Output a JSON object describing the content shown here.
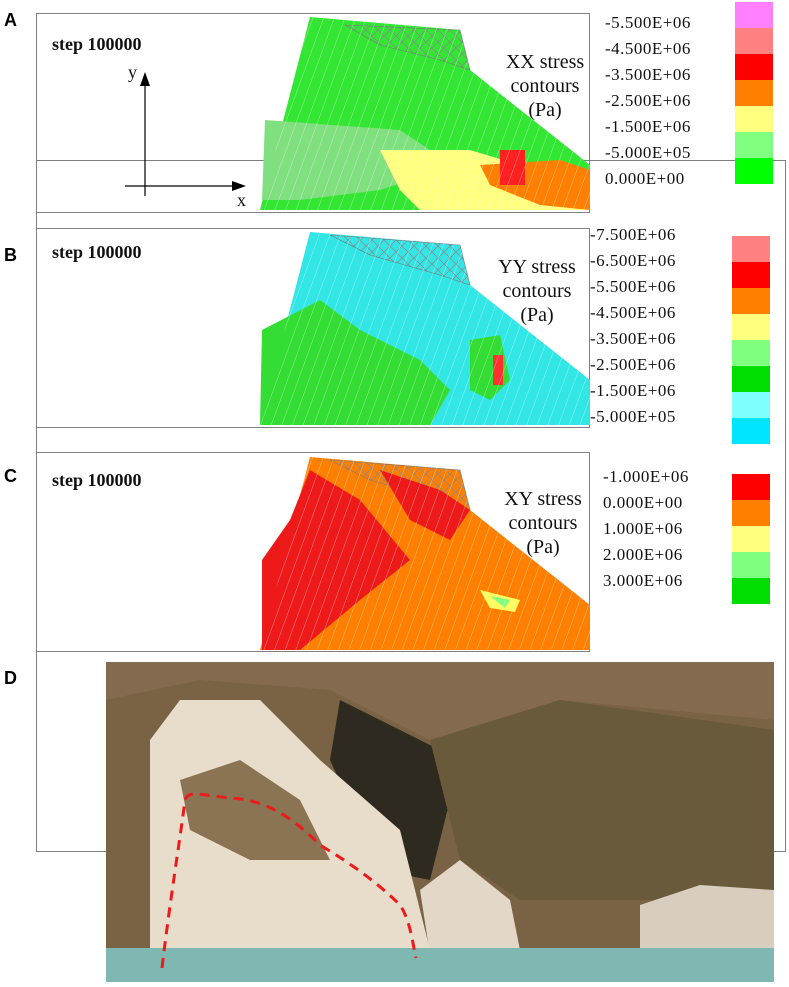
{
  "panels": [
    {
      "letter": "A",
      "step": "step 100000",
      "title_line1": "XX stress",
      "title_line2": "contours",
      "title_unit": "(Pa)",
      "axis_x": "x",
      "axis_y": "y",
      "legend": [
        {
          "label": "-5.500E+06",
          "color": "#ff80ff"
        },
        {
          "label": "-4.500E+06",
          "color": "#ff8080"
        },
        {
          "label": "-3.500E+06",
          "color": "#ff0000"
        },
        {
          "label": "-2.500E+06",
          "color": "#ff8000"
        },
        {
          "label": "-1.500E+06",
          "color": "#ffff80"
        },
        {
          "label": "-5.000E+05",
          "color": "#80ff80"
        },
        {
          "label": "0.000E+00",
          "color": "#00ff00"
        }
      ]
    },
    {
      "letter": "B",
      "step": "step 100000",
      "title_line1": "YY stress",
      "title_line2": "contours",
      "title_unit": "(Pa)",
      "legend": [
        {
          "label": "-7.500E+06",
          "color": "#ff8080"
        },
        {
          "label": "-6.500E+06",
          "color": "#ff0000"
        },
        {
          "label": "-5.500E+06",
          "color": "#ff8000"
        },
        {
          "label": "-4.500E+06",
          "color": "#ffff80"
        },
        {
          "label": "-3.500E+06",
          "color": "#80ff80"
        },
        {
          "label": "-2.500E+06",
          "color": "#00ff00"
        },
        {
          "label": "-1.500E+06",
          "color": "#80ffff"
        },
        {
          "label": "-5.000E+05",
          "color": "#00ffff"
        }
      ]
    },
    {
      "letter": "C",
      "step": "step 100000",
      "title_line1": "XY stress",
      "title_line2": "contours",
      "title_unit": "(Pa)",
      "legend": [
        {
          "label": "-1.000E+06",
          "color": "#ff0000"
        },
        {
          "label": "0.000E+00",
          "color": "#ff8000"
        },
        {
          "label": "1.000E+06",
          "color": "#ffff80"
        },
        {
          "label": "2.000E+06",
          "color": "#80ff80"
        },
        {
          "label": "3.000E+06",
          "color": "#00ff00"
        }
      ]
    },
    {
      "letter": "D"
    }
  ]
}
